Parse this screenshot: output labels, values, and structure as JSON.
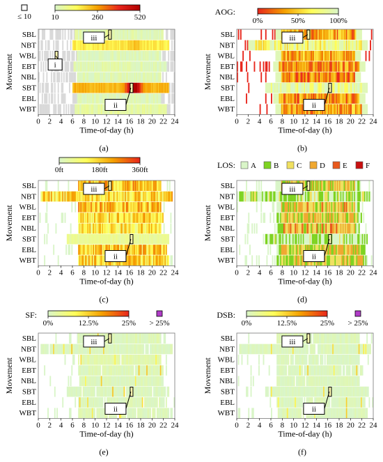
{
  "chart_data": [
    {
      "panel": "(a)",
      "type": "heatmap",
      "legend": {
        "swatch_label": "≤ 10",
        "ticks": [
          "10",
          "260",
          "520"
        ],
        "min": 10,
        "max": 520,
        "colors": [
          "#d9f5c8",
          "#ffff5a",
          "#f5a000",
          "#e8261c",
          "#b00000"
        ]
      },
      "rows": [
        "SBL",
        "NBT",
        "WBL",
        "EBT",
        "NBL",
        "SBT",
        "EBL",
        "WBT"
      ],
      "ylabel": "Movement",
      "xlabel": "Time-of-day (h)",
      "xticks": [
        "0",
        "2",
        "4",
        "6",
        "8",
        "10",
        "12",
        "14",
        "16",
        "18",
        "20",
        "22",
        "24"
      ],
      "xlim": [
        0,
        24
      ],
      "callouts": [
        {
          "label": "iii",
          "row": "SBL",
          "hour": 12.6
        },
        {
          "label": "i",
          "row": "WBL",
          "hour": 3.2
        },
        {
          "label": "ii",
          "row": "SBT",
          "hour": 16.4
        }
      ],
      "activity": [
        [
          6.5,
          22.0
        ],
        [
          6.0,
          23.0
        ],
        [
          6.8,
          21.5
        ],
        [
          6.2,
          22.5
        ],
        [
          6.8,
          21.5
        ],
        [
          6.0,
          23.0
        ],
        [
          6.8,
          21.5
        ],
        [
          6.5,
          22.5
        ]
      ],
      "level": [
        0.04,
        0.3,
        0.02,
        0.05,
        0.03,
        0.45,
        0.03,
        0.08
      ],
      "peak": [
        [
          12.6,
          0.06
        ],
        [
          17.0,
          0.1
        ],
        [
          0,
          0
        ],
        [
          0,
          0
        ],
        [
          0,
          0
        ],
        [
          16.8,
          0.7
        ],
        [
          0,
          0
        ],
        [
          0,
          0
        ]
      ]
    },
    {
      "panel": "(b)",
      "type": "heatmap",
      "legend": {
        "title": "AOG:",
        "ticks": [
          "0%",
          "50%",
          "100%"
        ],
        "min": 0,
        "max": 100,
        "colors": [
          "#e8261c",
          "#f5a000",
          "#ffff5a",
          "#d9f5c8"
        ]
      },
      "rows": [
        "SBL",
        "NBT",
        "WBL",
        "EBT",
        "NBL",
        "SBT",
        "EBL",
        "WBT"
      ],
      "ylabel": "Movement",
      "xlabel": "Time-of-day (h)",
      "xticks": [
        "0",
        "2",
        "4",
        "6",
        "8",
        "10",
        "12",
        "14",
        "16",
        "18",
        "20",
        "22",
        "24"
      ],
      "xlim": [
        0,
        24
      ],
      "callouts": [
        {
          "label": "iii",
          "row": "SBL",
          "hour": 12.6
        },
        {
          "label": "ii",
          "row": "SBT",
          "hour": 16.4
        }
      ],
      "activity": [
        [
          6.8,
          22.0
        ],
        [
          2.0,
          23.0
        ],
        [
          6.8,
          21.8
        ],
        [
          6.5,
          22.5
        ],
        [
          6.8,
          21.8
        ],
        [
          5.0,
          23.0
        ],
        [
          6.5,
          22.5
        ],
        [
          6.8,
          23.0
        ]
      ],
      "level": [
        0.35,
        0.75,
        0.4,
        0.3,
        0.25,
        0.9,
        0.3,
        0.35
      ],
      "peak": [
        [
          0,
          0
        ],
        [
          0,
          0
        ],
        [
          0,
          0
        ],
        [
          0,
          0
        ],
        [
          0,
          0
        ],
        [
          0,
          0
        ],
        [
          0,
          0
        ],
        [
          0,
          0
        ]
      ]
    },
    {
      "panel": "(c)",
      "type": "heatmap",
      "legend": {
        "ticks": [
          "0ft",
          "180ft",
          "360ft"
        ],
        "min": 0,
        "max": 360,
        "colors": [
          "#d9f5c8",
          "#ffff5a",
          "#f5a000",
          "#e8261c"
        ]
      },
      "rows": [
        "SBL",
        "NBT",
        "WBL",
        "EBT",
        "NBL",
        "SBT",
        "EBL",
        "WBT"
      ],
      "ylabel": "Movement",
      "xlabel": "Time-of-day (h)",
      "xticks": [
        "0",
        "2",
        "4",
        "6",
        "8",
        "10",
        "12",
        "14",
        "16",
        "18",
        "20",
        "22",
        "24"
      ],
      "xlim": [
        0,
        24
      ],
      "callouts": [
        {
          "label": "iii",
          "row": "SBL",
          "hour": 12.6
        },
        {
          "label": "ii",
          "row": "SBT",
          "hour": 16.4
        }
      ],
      "activity": [
        [
          7.0,
          21.5
        ],
        [
          0.5,
          23.5
        ],
        [
          7.0,
          21.5
        ],
        [
          7.0,
          22.0
        ],
        [
          7.0,
          21.5
        ],
        [
          5.0,
          23.0
        ],
        [
          7.0,
          22.5
        ],
        [
          7.0,
          23.0
        ]
      ],
      "level": [
        0.55,
        0.45,
        0.55,
        0.45,
        0.4,
        0.15,
        0.5,
        0.45
      ],
      "peak": [
        [
          0,
          0
        ],
        [
          0,
          0
        ],
        [
          0,
          0
        ],
        [
          0,
          0
        ],
        [
          0,
          0
        ],
        [
          0,
          0
        ],
        [
          0,
          0
        ],
        [
          0,
          0
        ]
      ]
    },
    {
      "panel": "(d)",
      "type": "heatmap",
      "legend": {
        "title": "LOS:",
        "categories": [
          {
            "label": "A",
            "color": "#d9f5c8"
          },
          {
            "label": "B",
            "color": "#7ed321"
          },
          {
            "label": "C",
            "color": "#f0e060"
          },
          {
            "label": "D",
            "color": "#f0a830"
          },
          {
            "label": "E",
            "color": "#e8581c"
          },
          {
            "label": "F",
            "color": "#c81010"
          }
        ]
      },
      "rows": [
        "SBL",
        "NBT",
        "WBL",
        "EBT",
        "NBL",
        "SBT",
        "EBL",
        "WBT"
      ],
      "ylabel": "Movement",
      "xlabel": "Time-of-day (h)",
      "xticks": [
        "0",
        "2",
        "4",
        "6",
        "8",
        "10",
        "12",
        "14",
        "16",
        "18",
        "20",
        "22",
        "24"
      ],
      "xlim": [
        0,
        24
      ],
      "callouts": [
        {
          "label": "iii",
          "row": "SBL",
          "hour": 12.6
        },
        {
          "label": "ii",
          "row": "SBT",
          "hour": 16.4
        }
      ],
      "activity": [
        [
          7.0,
          21.5
        ],
        [
          0.5,
          23.5
        ],
        [
          7.0,
          21.5
        ],
        [
          7.0,
          22.0
        ],
        [
          7.0,
          21.5
        ],
        [
          5.0,
          23.0
        ],
        [
          7.0,
          22.5
        ],
        [
          7.0,
          23.0
        ]
      ],
      "level": [
        0.5,
        0.2,
        0.55,
        0.5,
        0.6,
        0.15,
        0.5,
        0.5
      ],
      "peak": [
        [
          0,
          0
        ],
        [
          0,
          0
        ],
        [
          0,
          0
        ],
        [
          0,
          0
        ],
        [
          0,
          0
        ],
        [
          0,
          0
        ],
        [
          0,
          0
        ],
        [
          0,
          0
        ]
      ]
    },
    {
      "panel": "(e)",
      "type": "heatmap",
      "legend": {
        "title": "SF:",
        "ticks": [
          "0%",
          "12.5%",
          "25%"
        ],
        "overflow_label": "> 25%",
        "overflow_color": "#b03cc8",
        "min": 0,
        "max": 25,
        "colors": [
          "#d9f5c8",
          "#ffff5a",
          "#f5a000",
          "#e8261c"
        ]
      },
      "rows": [
        "SBL",
        "NBT",
        "WBL",
        "EBT",
        "NBL",
        "SBT",
        "EBL",
        "WBT"
      ],
      "ylabel": "Movement",
      "xlabel": "Time-of-day (h)",
      "xticks": [
        "0",
        "2",
        "4",
        "6",
        "8",
        "10",
        "12",
        "14",
        "16",
        "18",
        "20",
        "22",
        "24"
      ],
      "xlim": [
        0,
        24
      ],
      "callouts": [
        {
          "label": "iii",
          "row": "SBL",
          "hour": 12.6
        },
        {
          "label": "ii",
          "row": "SBT",
          "hour": 16.4
        }
      ],
      "activity": [
        [
          7.0,
          21.5
        ],
        [
          0.5,
          23.5
        ],
        [
          7.0,
          21.5
        ],
        [
          7.0,
          22.0
        ],
        [
          7.0,
          21.5
        ],
        [
          5.0,
          23.0
        ],
        [
          7.0,
          22.5
        ],
        [
          7.0,
          23.0
        ]
      ],
      "level": [
        0.05,
        0.02,
        0.08,
        0.04,
        0.03,
        0.01,
        0.03,
        0.04
      ],
      "peak": [
        [
          0,
          0
        ],
        [
          0,
          0
        ],
        [
          0,
          0
        ],
        [
          0,
          0
        ],
        [
          0,
          0
        ],
        [
          0,
          0
        ],
        [
          0,
          0
        ],
        [
          0,
          0
        ]
      ]
    },
    {
      "panel": "(f)",
      "type": "heatmap",
      "legend": {
        "title": "DSB:",
        "ticks": [
          "0%",
          "12.5%",
          "25%"
        ],
        "overflow_label": "> 25%",
        "overflow_color": "#b03cc8",
        "min": 0,
        "max": 25,
        "colors": [
          "#d9f5c8",
          "#ffff5a",
          "#f5a000",
          "#e8261c"
        ]
      },
      "rows": [
        "SBL",
        "NBT",
        "WBL",
        "EBT",
        "NBL",
        "SBT",
        "EBL",
        "WBT"
      ],
      "ylabel": "Movement",
      "xlabel": "Time-of-day (h)",
      "xticks": [
        "0",
        "2",
        "4",
        "6",
        "8",
        "10",
        "12",
        "14",
        "16",
        "18",
        "20",
        "22",
        "24"
      ],
      "xlim": [
        0,
        24
      ],
      "callouts": [
        {
          "label": "iii",
          "row": "SBL",
          "hour": 12.6
        },
        {
          "label": "ii",
          "row": "SBT",
          "hour": 16.4
        }
      ],
      "activity": [
        [
          7.0,
          21.5
        ],
        [
          0.5,
          23.5
        ],
        [
          7.0,
          21.5
        ],
        [
          7.0,
          22.0
        ],
        [
          7.0,
          21.5
        ],
        [
          5.0,
          23.0
        ],
        [
          7.0,
          22.5
        ],
        [
          7.0,
          23.0
        ]
      ],
      "level": [
        0.04,
        0.02,
        0.02,
        0.02,
        0.02,
        0.01,
        0.02,
        0.02
      ],
      "peak": [
        [
          0,
          0
        ],
        [
          0,
          0
        ],
        [
          0,
          0
        ],
        [
          0,
          0
        ],
        [
          0,
          0
        ],
        [
          0,
          0
        ],
        [
          0,
          0
        ],
        [
          0,
          0
        ]
      ]
    }
  ]
}
